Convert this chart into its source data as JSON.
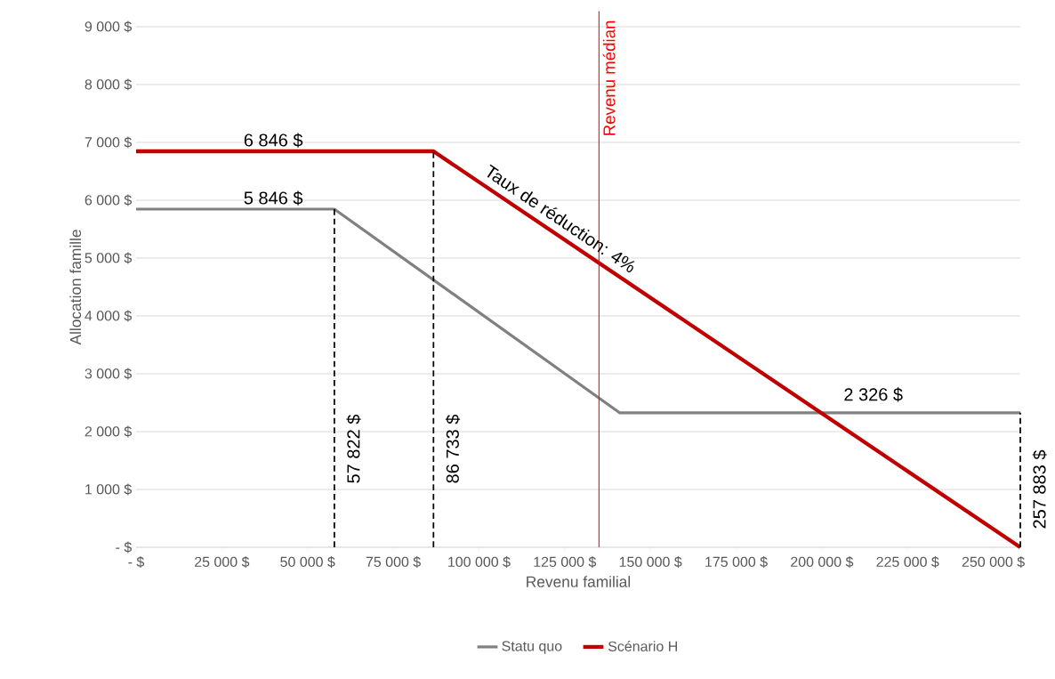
{
  "chart_data": {
    "type": "line",
    "xlabel": "Revenu familial",
    "ylabel": "Allocation famille",
    "xlim": [
      0,
      257883
    ],
    "ylim": [
      0,
      9000
    ],
    "xticks": [
      {
        "value": 0,
        "label": "-  $"
      },
      {
        "value": 25000,
        "label": "25 000 $"
      },
      {
        "value": 50000,
        "label": "50 000 $"
      },
      {
        "value": 75000,
        "label": "75 000 $"
      },
      {
        "value": 100000,
        "label": "100 000 $"
      },
      {
        "value": 125000,
        "label": "125 000 $"
      },
      {
        "value": 150000,
        "label": "150 000 $"
      },
      {
        "value": 175000,
        "label": "175 000 $"
      },
      {
        "value": 200000,
        "label": "200 000 $"
      },
      {
        "value": 225000,
        "label": "225 000 $"
      },
      {
        "value": 250000,
        "label": "250 000 $"
      }
    ],
    "yticks": [
      {
        "value": 0,
        "label": "-  $"
      },
      {
        "value": 1000,
        "label": "1 000 $"
      },
      {
        "value": 2000,
        "label": "2 000 $"
      },
      {
        "value": 3000,
        "label": "3 000 $"
      },
      {
        "value": 4000,
        "label": "4 000 $"
      },
      {
        "value": 5000,
        "label": "5 000 $"
      },
      {
        "value": 6000,
        "label": "6 000 $"
      },
      {
        "value": 7000,
        "label": "7 000 $"
      },
      {
        "value": 8000,
        "label": "8 000 $"
      },
      {
        "value": 9000,
        "label": "9 000 $"
      }
    ],
    "grid": "y",
    "legend": "bottom",
    "series": [
      {
        "name": "Statu quo",
        "color": "#808080",
        "x": [
          0,
          57822,
          141000,
          257883
        ],
        "values": [
          5846,
          5846,
          2326,
          2326
        ]
      },
      {
        "name": "Scénario H",
        "color": "#c00000",
        "x": [
          0,
          86733,
          257883
        ],
        "values": [
          6846,
          6846,
          0
        ]
      },
      {
        "color": "#000000",
        "line_style": "dashed",
        "x": [
          57822,
          57822
        ],
        "values": [
          0,
          5846
        ]
      },
      {
        "color": "#000000",
        "line_style": "dashed",
        "x": [
          86733,
          86733
        ],
        "values": [
          0,
          6846
        ]
      },
      {
        "color": "#000000",
        "line_style": "dashed",
        "x": [
          257883,
          257883
        ],
        "values": [
          0,
          2326
        ]
      }
    ],
    "ref_lines": [
      {
        "axis": "x",
        "value": 135000,
        "label": "Revenu médian",
        "color": "#ff0000"
      }
    ],
    "annotations": [
      {
        "text": "6 846 $",
        "x": 40000,
        "y": 6846
      },
      {
        "text": "5 846 $",
        "x": 40000,
        "y": 5846
      },
      {
        "text": "2 326 $",
        "x": 215000,
        "y": 2326
      },
      {
        "text": "57 822 $",
        "x": 57822,
        "y": 1700
      },
      {
        "text": "86 733 $",
        "x": 86733,
        "y": 1700
      },
      {
        "text": "257 883 $",
        "x": 257883,
        "y": 1000
      },
      {
        "text": "Taux de réduction: 4%",
        "x": 120000,
        "y": 5567
      }
    ]
  }
}
